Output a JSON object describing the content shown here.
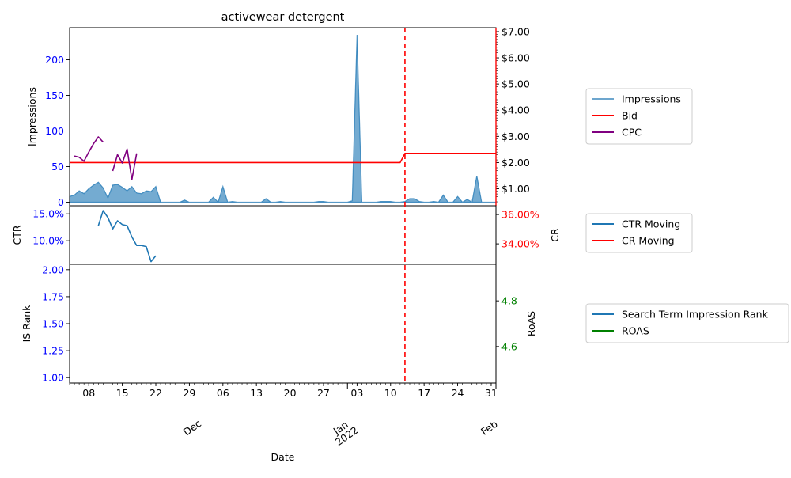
{
  "colors": {
    "impressions": "#1f77b4",
    "bid": "#ff0000",
    "cpc": "#800080",
    "ctr": "#1f77b4",
    "cr": "#ff0000",
    "isrank": "#1f77b4",
    "roas": "#008000",
    "left_ticks": "#0000ff",
    "cr_ticks": "#ff0000",
    "roas_ticks": "#008000",
    "marker": "#ff0000"
  },
  "chart_data": {
    "type": "line",
    "title": "activewear detergent",
    "xlabel": "Date",
    "x_range": [
      "2021-11-04",
      "2022-02-01"
    ],
    "marker_date": "2022-01-13",
    "x_minor_ticks": [
      "08",
      "15",
      "22",
      "29",
      "06",
      "13",
      "20",
      "27",
      "03",
      "10",
      "17",
      "24",
      "31"
    ],
    "x_minor_dates": [
      "2021-11-08",
      "2021-11-15",
      "2021-11-22",
      "2021-11-29",
      "2021-12-06",
      "2021-12-13",
      "2021-12-20",
      "2021-12-27",
      "2022-01-03",
      "2022-01-10",
      "2022-01-17",
      "2022-01-24",
      "2022-01-31"
    ],
    "x_major_ticks": [
      "Dec",
      "Jan\n2022",
      "Feb"
    ],
    "x_major_dates": [
      "2021-12-01",
      "2022-01-01",
      "2022-02-01"
    ],
    "panels": [
      {
        "name": "impressions-bid-cpc",
        "ylabel": "Impressions",
        "ylim": [
          -5,
          245
        ],
        "yticks": [
          "0",
          "50",
          "100",
          "150",
          "200"
        ],
        "y2label": "",
        "y2lim": [
          0.35,
          7.15
        ],
        "y2ticks": [
          "$1.00",
          "$2.00",
          "$3.00",
          "$4.00",
          "$5.00",
          "$6.00",
          "$7.00"
        ],
        "series": [
          {
            "name": "Impressions",
            "kind": "area",
            "axis": "left",
            "points": [
              [
                "2021-11-04",
                8
              ],
              [
                "2021-11-05",
                10
              ],
              [
                "2021-11-06",
                16
              ],
              [
                "2021-11-07",
                12
              ],
              [
                "2021-11-08",
                19
              ],
              [
                "2021-11-09",
                24
              ],
              [
                "2021-11-10",
                28
              ],
              [
                "2021-11-11",
                20
              ],
              [
                "2021-11-12",
                6
              ],
              [
                "2021-11-13",
                24
              ],
              [
                "2021-11-14",
                25
              ],
              [
                "2021-11-15",
                21
              ],
              [
                "2021-11-16",
                16
              ],
              [
                "2021-11-17",
                22
              ],
              [
                "2021-11-18",
                13
              ],
              [
                "2021-11-19",
                12
              ],
              [
                "2021-11-20",
                16
              ],
              [
                "2021-11-21",
                15
              ],
              [
                "2021-11-22",
                22
              ],
              [
                "2021-11-23",
                0
              ],
              [
                "2021-11-24",
                0
              ],
              [
                "2021-11-25",
                0
              ],
              [
                "2021-11-26",
                0
              ],
              [
                "2021-11-27",
                0
              ],
              [
                "2021-11-28",
                3
              ],
              [
                "2021-11-29",
                0
              ],
              [
                "2021-11-30",
                0
              ],
              [
                "2021-12-01",
                0
              ],
              [
                "2021-12-02",
                0
              ],
              [
                "2021-12-03",
                0
              ],
              [
                "2021-12-04",
                7
              ],
              [
                "2021-12-05",
                0
              ],
              [
                "2021-12-06",
                22
              ],
              [
                "2021-12-07",
                0
              ],
              [
                "2021-12-08",
                1
              ],
              [
                "2021-12-09",
                0
              ],
              [
                "2021-12-10",
                0
              ],
              [
                "2021-12-11",
                0
              ],
              [
                "2021-12-12",
                0
              ],
              [
                "2021-12-13",
                0
              ],
              [
                "2021-12-14",
                0
              ],
              [
                "2021-12-15",
                5
              ],
              [
                "2021-12-16",
                0
              ],
              [
                "2021-12-17",
                0
              ],
              [
                "2021-12-18",
                1
              ],
              [
                "2021-12-19",
                0
              ],
              [
                "2021-12-20",
                0
              ],
              [
                "2021-12-21",
                0
              ],
              [
                "2021-12-22",
                0
              ],
              [
                "2021-12-23",
                0
              ],
              [
                "2021-12-24",
                0
              ],
              [
                "2021-12-25",
                0
              ],
              [
                "2021-12-26",
                1
              ],
              [
                "2021-12-27",
                1
              ],
              [
                "2021-12-28",
                0
              ],
              [
                "2021-12-29",
                0
              ],
              [
                "2021-12-30",
                0
              ],
              [
                "2021-12-31",
                0
              ],
              [
                "2022-01-01",
                0
              ],
              [
                "2022-01-02",
                2
              ],
              [
                "2022-01-03",
                235
              ],
              [
                "2022-01-04",
                0
              ],
              [
                "2022-01-05",
                0
              ],
              [
                "2022-01-06",
                0
              ],
              [
                "2022-01-07",
                0
              ],
              [
                "2022-01-08",
                1
              ],
              [
                "2022-01-09",
                1
              ],
              [
                "2022-01-10",
                1
              ],
              [
                "2022-01-11",
                0
              ],
              [
                "2022-01-12",
                0
              ],
              [
                "2022-01-13",
                1
              ],
              [
                "2022-01-14",
                5
              ],
              [
                "2022-01-15",
                5
              ],
              [
                "2022-01-16",
                1
              ],
              [
                "2022-01-17",
                0
              ],
              [
                "2022-01-18",
                0
              ],
              [
                "2022-01-19",
                1
              ],
              [
                "2022-01-20",
                0
              ],
              [
                "2022-01-21",
                10
              ],
              [
                "2022-01-22",
                0
              ],
              [
                "2022-01-23",
                0
              ],
              [
                "2022-01-24",
                8
              ],
              [
                "2022-01-25",
                0
              ],
              [
                "2022-01-26",
                4
              ],
              [
                "2022-01-27",
                0
              ],
              [
                "2022-01-28",
                37
              ],
              [
                "2022-01-29",
                0
              ],
              [
                "2022-01-30",
                0
              ],
              [
                "2022-01-31",
                0
              ],
              [
                "2022-02-01",
                0
              ]
            ]
          },
          {
            "name": "Bid",
            "kind": "line",
            "axis": "right",
            "points": [
              [
                "2021-11-04",
                2.0
              ],
              [
                "2022-01-12",
                2.0
              ],
              [
                "2022-01-13",
                2.35
              ],
              [
                "2022-02-01",
                2.35
              ]
            ]
          },
          {
            "name": "CPC",
            "kind": "line",
            "axis": "right",
            "points": [
              [
                "2021-11-05",
                2.25
              ],
              [
                "2021-11-06",
                2.2
              ],
              [
                "2021-11-07",
                2.05
              ],
              [
                "2021-11-08",
                2.4
              ],
              [
                "2021-11-09",
                2.72
              ],
              [
                "2021-11-10",
                2.98
              ],
              [
                "2021-11-11",
                2.78
              ],
              null,
              [
                "2021-11-13",
                1.68
              ],
              [
                "2021-11-14",
                2.3
              ],
              [
                "2021-11-15",
                1.98
              ],
              [
                "2021-11-16",
                2.52
              ],
              [
                "2021-11-17",
                1.35
              ],
              [
                "2021-11-18",
                2.35
              ]
            ]
          }
        ]
      },
      {
        "name": "ctr-cr",
        "ylabel": "CTR",
        "ylim": [
          0.056,
          0.165
        ],
        "yticks": [
          "10.0%",
          "15.0%"
        ],
        "y2label": "CR",
        "y2lim": [
          0.326,
          0.366
        ],
        "y2ticks": [
          "34.00%",
          "36.00%"
        ],
        "series": [
          {
            "name": "CTR Moving",
            "kind": "line",
            "axis": "left",
            "points": [
              [
                "2021-11-10",
                0.128
              ],
              [
                "2021-11-11",
                0.156
              ],
              [
                "2021-11-12",
                0.143
              ],
              [
                "2021-11-13",
                0.122
              ],
              [
                "2021-11-14",
                0.137
              ],
              [
                "2021-11-15",
                0.13
              ],
              [
                "2021-11-16",
                0.128
              ],
              [
                "2021-11-17",
                0.107
              ],
              [
                "2021-11-18",
                0.091
              ],
              [
                "2021-11-19",
                0.091
              ],
              [
                "2021-11-20",
                0.089
              ],
              [
                "2021-11-21",
                0.061
              ],
              [
                "2021-11-22",
                0.072
              ]
            ]
          },
          {
            "name": "CR Moving",
            "kind": "line",
            "axis": "right",
            "points": []
          }
        ]
      },
      {
        "name": "isrank-roas",
        "ylabel": "IS Rank",
        "ylim": [
          0.95,
          2.05
        ],
        "yticks": [
          "1.00",
          "1.25",
          "1.50",
          "1.75",
          "2.00"
        ],
        "y2label": "RoAS",
        "y2lim": [
          4.44,
          4.96
        ],
        "y2ticks": [
          "4.6",
          "4.8"
        ],
        "series": [
          {
            "name": "Search Term Impression Rank",
            "kind": "line",
            "axis": "left",
            "points": []
          },
          {
            "name": "ROAS",
            "kind": "line",
            "axis": "right",
            "points": []
          }
        ]
      }
    ]
  }
}
